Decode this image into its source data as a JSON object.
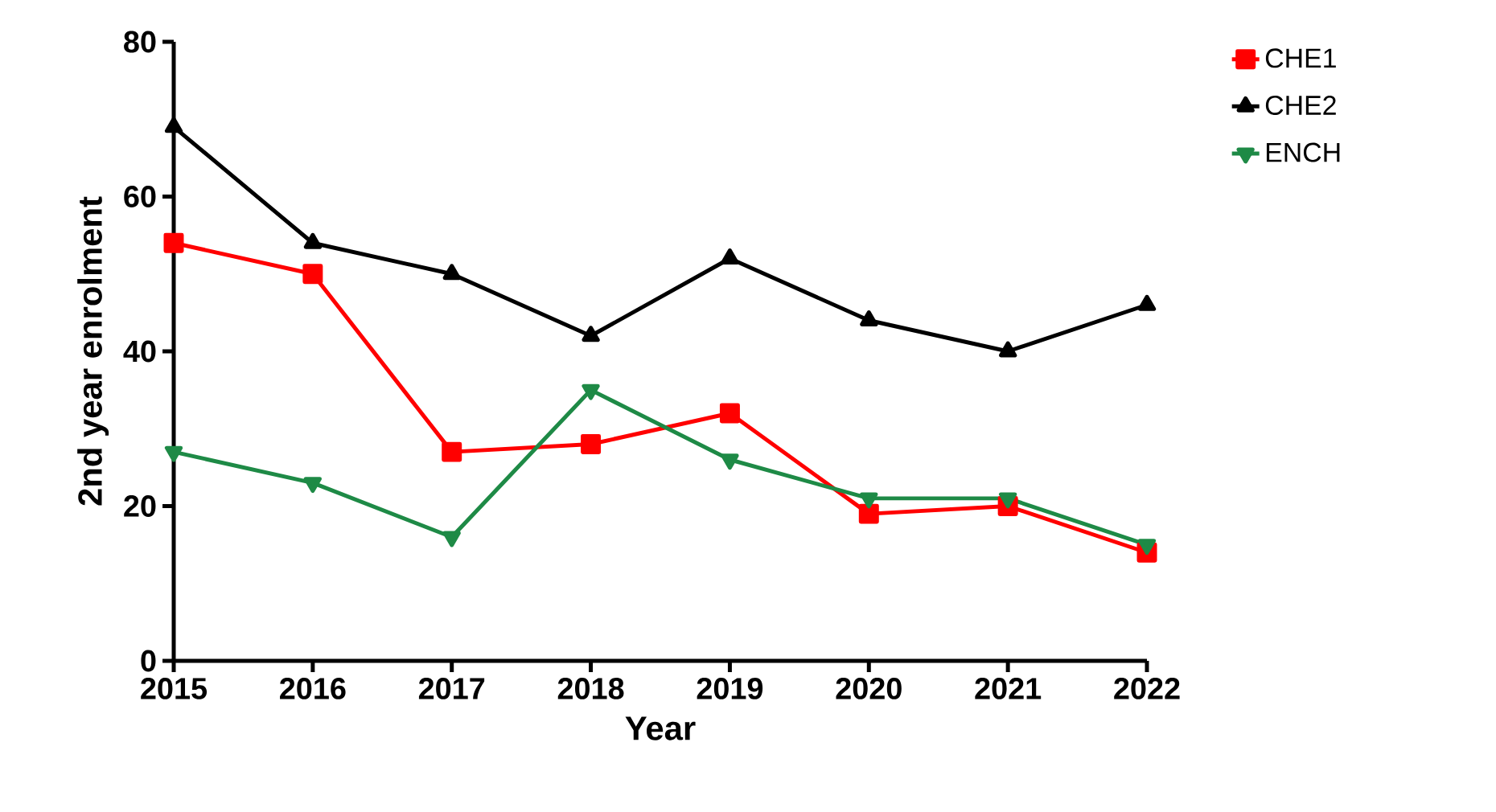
{
  "chart_data": {
    "type": "line",
    "xlabel": "Year",
    "ylabel": "2nd year enrolment",
    "x": [
      2015,
      2016,
      2017,
      2018,
      2019,
      2020,
      2021,
      2022
    ],
    "xlim": [
      2015,
      2022
    ],
    "xticks": [
      2015,
      2016,
      2017,
      2018,
      2019,
      2020,
      2021,
      2022
    ],
    "ylim": [
      0,
      80
    ],
    "yticks": [
      0,
      20,
      40,
      60,
      80
    ],
    "grid": false,
    "legend": "right",
    "line_style": "solid",
    "series": [
      {
        "name": "CHE1",
        "color": "#ff0000",
        "marker": "square",
        "values": [
          54,
          50,
          27,
          28,
          32,
          19,
          20,
          14
        ]
      },
      {
        "name": "CHE2",
        "color": "#000000",
        "marker": "triangle",
        "values": [
          69,
          54,
          50,
          42,
          52,
          44,
          40,
          46
        ]
      },
      {
        "name": "ENCH",
        "color": "#1e8a46",
        "marker": "triangle-down",
        "values": [
          27,
          23,
          16,
          35,
          26,
          21,
          21,
          15
        ]
      }
    ]
  }
}
